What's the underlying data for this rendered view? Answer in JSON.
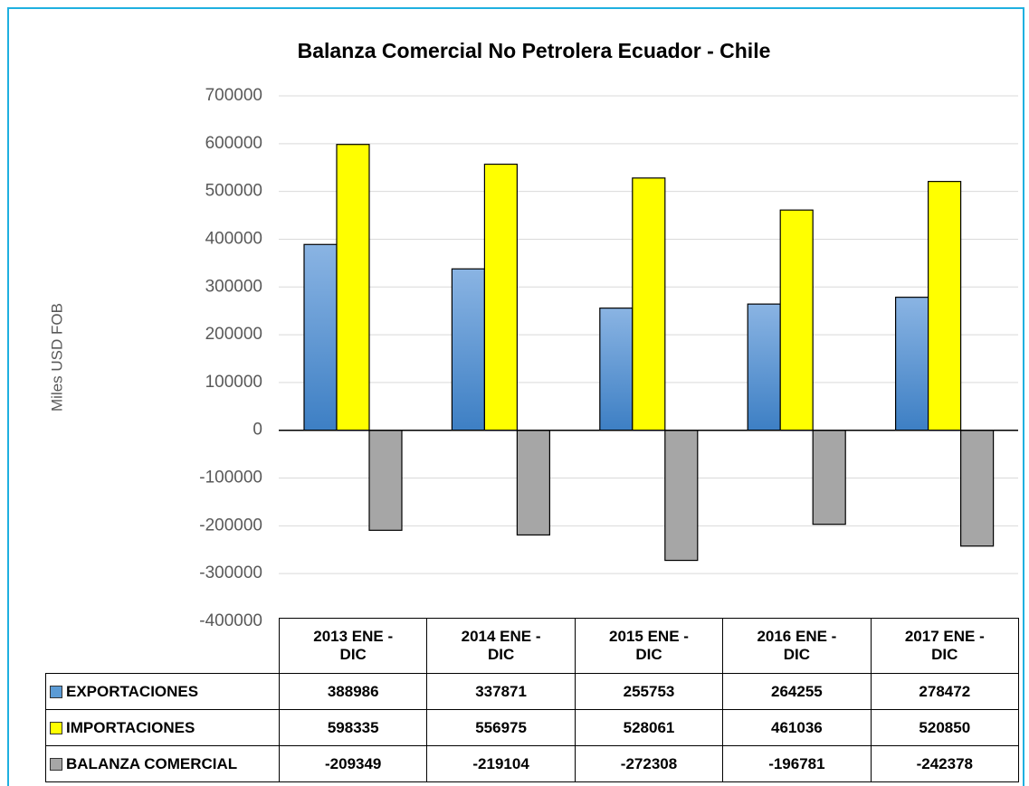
{
  "chart_data": {
    "type": "bar",
    "title": "Balanza Comercial No Petrolera Ecuador - Chile",
    "y_label": "Miles USD FOB",
    "categories": [
      "2013 ENE - DIC",
      "2014 ENE - DIC",
      "2015 ENE - DIC",
      "2016 ENE - DIC",
      "2017 ENE - DIC"
    ],
    "series": [
      {
        "name": "EXPORTACIONES",
        "color": "#5b9bd5",
        "values": [
          388986,
          337871,
          255753,
          264255,
          278472
        ]
      },
      {
        "name": "IMPORTACIONES",
        "color": "#ffff00",
        "values": [
          598335,
          556975,
          528061,
          461036,
          520850
        ]
      },
      {
        "name": "BALANZA COMERCIAL",
        "color": "#a6a6a6",
        "values": [
          -209349,
          -219104,
          -272308,
          -196781,
          -242378
        ]
      }
    ],
    "ylim": [
      -400000,
      700000
    ],
    "yticks": [
      -400000,
      -300000,
      -200000,
      -100000,
      0,
      100000,
      200000,
      300000,
      400000,
      500000,
      600000,
      700000
    ],
    "grid": true
  }
}
